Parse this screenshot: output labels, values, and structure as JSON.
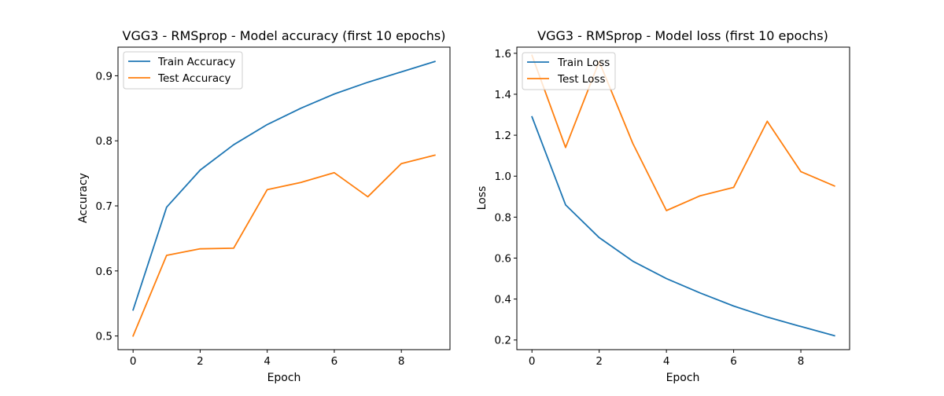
{
  "chart_data": [
    {
      "type": "line",
      "title": "VGG3 - RMSprop - Model accuracy (first 10 epochs)",
      "xlabel": "Epoch",
      "ylabel": "Accuracy",
      "xlim": [
        -0.45,
        9.45
      ],
      "ylim": [
        0.479,
        0.944
      ],
      "xticks": [
        0,
        2,
        4,
        6,
        8
      ],
      "xtick_labels": [
        "0",
        "2",
        "4",
        "6",
        "8"
      ],
      "yticks": [
        0.5,
        0.6,
        0.7,
        0.8,
        0.9
      ],
      "ytick_labels": [
        "0.5",
        "0.6",
        "0.7",
        "0.8",
        "0.9"
      ],
      "x": [
        0,
        1,
        2,
        3,
        4,
        5,
        6,
        7,
        8,
        9
      ],
      "series": [
        {
          "name": "Train Accuracy",
          "color": "#1f77b4",
          "values": [
            0.54,
            0.698,
            0.755,
            0.794,
            0.825,
            0.85,
            0.872,
            0.89,
            0.906,
            0.922
          ]
        },
        {
          "name": "Test Accuracy",
          "color": "#ff7f0e",
          "values": [
            0.5,
            0.624,
            0.634,
            0.635,
            0.725,
            0.736,
            0.751,
            0.714,
            0.765,
            0.778
          ]
        }
      ],
      "legend": "upper-left",
      "grid": false
    },
    {
      "type": "line",
      "title": "VGG3 - RMSprop - Model loss (first 10 epochs)",
      "xlabel": "Epoch",
      "ylabel": "Loss",
      "xlim": [
        -0.45,
        9.45
      ],
      "ylim": [
        0.153,
        1.63
      ],
      "xticks": [
        0,
        2,
        4,
        6,
        8
      ],
      "xtick_labels": [
        "0",
        "2",
        "4",
        "6",
        "8"
      ],
      "yticks": [
        0.2,
        0.4,
        0.6,
        0.8,
        1.0,
        1.2,
        1.4,
        1.6
      ],
      "ytick_labels": [
        "0.2",
        "0.4",
        "0.6",
        "0.8",
        "1.0",
        "1.2",
        "1.4",
        "1.6"
      ],
      "x": [
        0,
        1,
        2,
        3,
        4,
        5,
        6,
        7,
        8,
        9
      ],
      "series": [
        {
          "name": "Train Loss",
          "color": "#1f77b4",
          "values": [
            1.29,
            0.86,
            0.7,
            0.585,
            0.5,
            0.43,
            0.366,
            0.312,
            0.266,
            0.221
          ]
        },
        {
          "name": "Test Loss",
          "color": "#ff7f0e",
          "values": [
            1.59,
            1.14,
            1.56,
            1.16,
            0.832,
            0.904,
            0.945,
            1.268,
            1.022,
            0.952
          ]
        }
      ],
      "legend": "upper-left",
      "grid": false
    }
  ]
}
